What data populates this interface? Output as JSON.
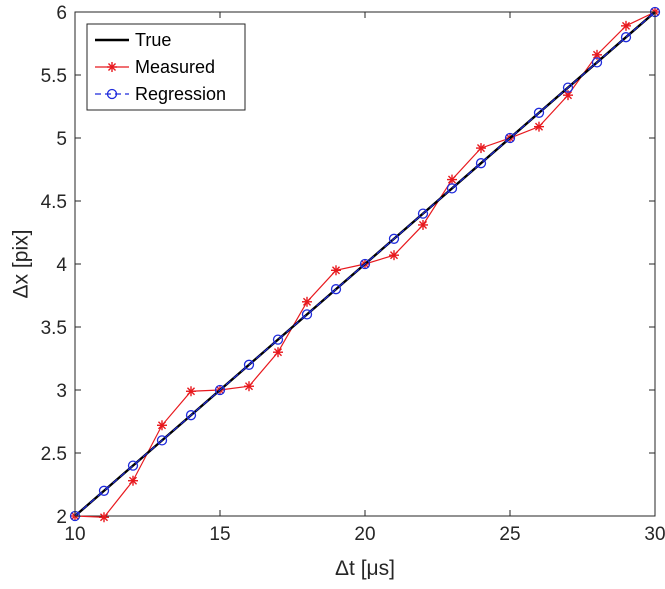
{
  "chart_data": {
    "type": "line",
    "xlabel": "Δt [μs]",
    "ylabel": "Δx [pix]",
    "xlim": [
      10,
      30
    ],
    "ylim": [
      2,
      6
    ],
    "xticks": [
      10,
      15,
      20,
      25,
      30
    ],
    "yticks": [
      2,
      2.5,
      3,
      3.5,
      4,
      4.5,
      5,
      5.5,
      6
    ],
    "grid": false,
    "legend_position": "top-left",
    "series": [
      {
        "name": "True",
        "color": "#000000",
        "marker": "none",
        "style": "solid",
        "x": [
          10,
          30
        ],
        "y": [
          2,
          6
        ]
      },
      {
        "name": "Measured",
        "color": "#e8191e",
        "marker": "asterisk",
        "style": "solid",
        "x": [
          10,
          11,
          12,
          13,
          14,
          15,
          16,
          17,
          18,
          19,
          20,
          21,
          22,
          23,
          24,
          25,
          26,
          27,
          28,
          29,
          30
        ],
        "y": [
          2.0,
          1.99,
          2.28,
          2.72,
          2.99,
          3.0,
          3.03,
          3.3,
          3.7,
          3.95,
          4.0,
          4.07,
          4.31,
          4.67,
          4.92,
          5.0,
          5.09,
          5.34,
          5.66,
          5.89,
          6.0
        ]
      },
      {
        "name": "Regression",
        "color": "#1f2bdc",
        "marker": "circle",
        "style": "dashed",
        "x": [
          10,
          11,
          12,
          13,
          14,
          15,
          16,
          17,
          18,
          19,
          20,
          21,
          22,
          23,
          24,
          25,
          26,
          27,
          28,
          29,
          30
        ],
        "y": [
          2.0,
          2.2,
          2.4,
          2.6,
          2.8,
          3.0,
          3.2,
          3.4,
          3.6,
          3.8,
          4.0,
          4.2,
          4.4,
          4.6,
          4.8,
          5.0,
          5.2,
          5.4,
          5.6,
          5.8,
          6.0
        ]
      }
    ]
  }
}
